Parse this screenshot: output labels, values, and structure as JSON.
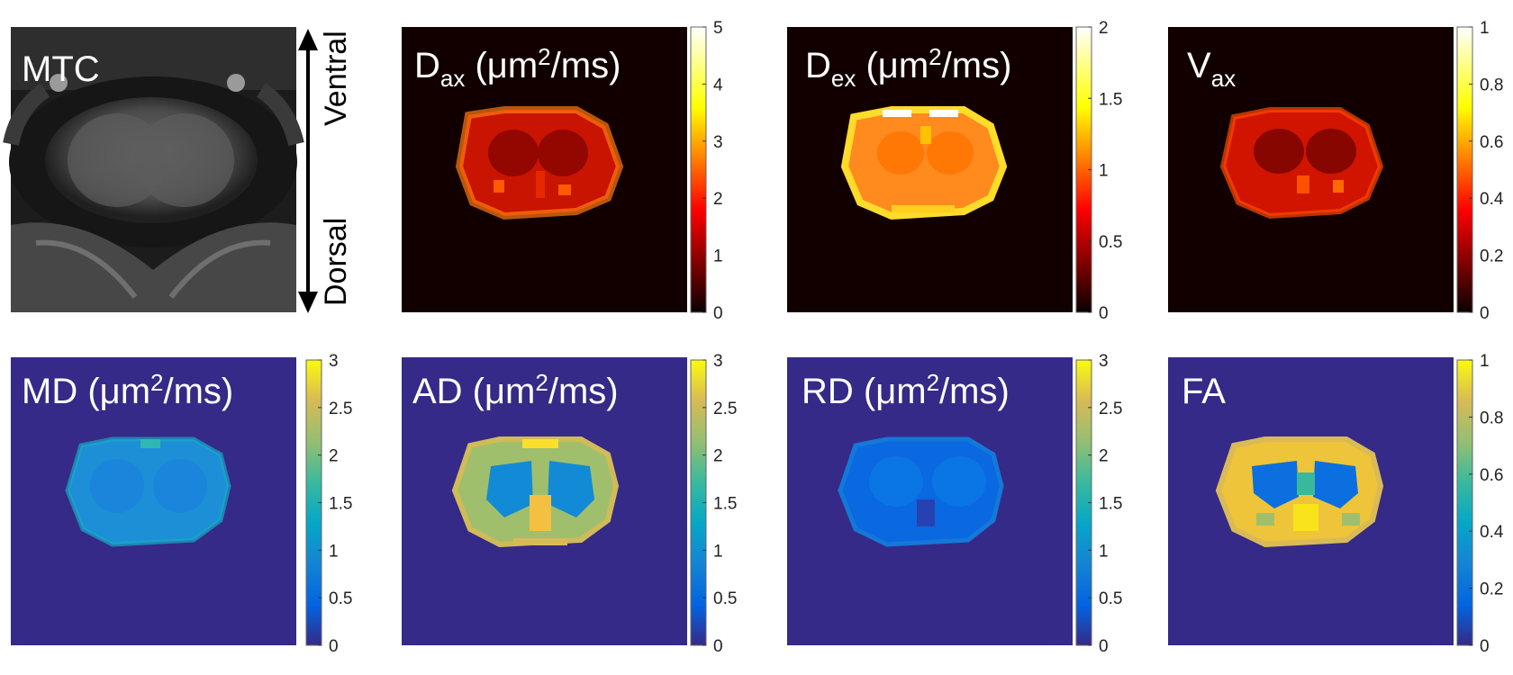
{
  "figure": {
    "orientation": {
      "top": "Ventral",
      "bottom": "Dorsal"
    },
    "panels": [
      {
        "id": "mtc",
        "label": "MTC",
        "map": "gray",
        "pattern": "mri"
      },
      {
        "id": "dax",
        "label": "Dax (μm2/ms)",
        "label_main": "D",
        "label_sub": "ax",
        "label_rest": " (μm",
        "label_sup": "2",
        "label_end": "/ms)",
        "map": "hot",
        "pattern": "dax",
        "colorbar": {
          "min": 0,
          "max": 5,
          "ticks": [
            "0",
            "1",
            "2",
            "3",
            "4",
            "5"
          ]
        }
      },
      {
        "id": "dex",
        "label": "Dex (μm2/ms)",
        "label_main": "D",
        "label_sub": "ex",
        "label_rest": " (μm",
        "label_sup": "2",
        "label_end": "/ms)",
        "map": "hot",
        "pattern": "dex",
        "colorbar": {
          "min": 0,
          "max": 2,
          "ticks": [
            "0",
            "0.5",
            "1",
            "1.5",
            "2"
          ]
        }
      },
      {
        "id": "vax",
        "label": "Vax",
        "label_main": "V",
        "label_sub": "ax",
        "label_rest": "",
        "label_sup": "",
        "label_end": "",
        "map": "hot",
        "pattern": "vax",
        "colorbar": {
          "min": 0,
          "max": 1,
          "ticks": [
            "0",
            "0.2",
            "0.4",
            "0.6",
            "0.8",
            "1"
          ]
        }
      },
      {
        "id": "md",
        "label": "MD (μm2/ms)",
        "label_main": "MD (μm",
        "label_sub": "",
        "label_rest": "",
        "label_sup": "2",
        "label_end": "/ms)",
        "map": "parula",
        "pattern": "md",
        "colorbar": {
          "min": 0,
          "max": 3,
          "ticks": [
            "0",
            "0.5",
            "1",
            "1.5",
            "2",
            "2.5",
            "3"
          ]
        }
      },
      {
        "id": "ad",
        "label": "AD (μm2/ms)",
        "label_main": "AD (μm",
        "label_sub": "",
        "label_rest": "",
        "label_sup": "2",
        "label_end": "/ms)",
        "map": "parula",
        "pattern": "ad",
        "colorbar": {
          "min": 0,
          "max": 3,
          "ticks": [
            "0",
            "0.5",
            "1",
            "1.5",
            "2",
            "2.5",
            "3"
          ]
        }
      },
      {
        "id": "rd",
        "label": "RD (μm2/ms)",
        "label_main": "RD (μm",
        "label_sub": "",
        "label_rest": "",
        "label_sup": "2",
        "label_end": "/ms)",
        "map": "parula",
        "pattern": "rd",
        "colorbar": {
          "min": 0,
          "max": 3,
          "ticks": [
            "0",
            "0.5",
            "1",
            "1.5",
            "2",
            "2.5",
            "3"
          ]
        }
      },
      {
        "id": "fa",
        "label": "FA",
        "label_main": "FA",
        "label_sub": "",
        "label_rest": "",
        "label_sup": "",
        "label_end": "",
        "map": "parula",
        "pattern": "fa",
        "colorbar": {
          "min": 0,
          "max": 1,
          "ticks": [
            "0",
            "0.2",
            "0.4",
            "0.6",
            "0.8",
            "1"
          ]
        }
      }
    ]
  },
  "colors": {
    "hot_background": "#120000",
    "parula_background": "#352a87",
    "colorbar_border": "#666666"
  }
}
